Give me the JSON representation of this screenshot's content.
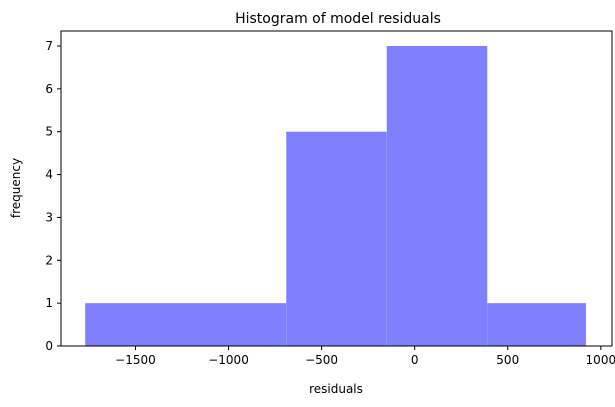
{
  "chart_data": {
    "type": "bar",
    "title": "Histogram of model residuals",
    "xlabel": "residuals",
    "ylabel": "frequency",
    "xlim": [
      -1900,
      1060
    ],
    "ylim": [
      0,
      7.35
    ],
    "bins": [
      {
        "x0": -1770,
        "x1": -690,
        "count": 1
      },
      {
        "x0": -690,
        "x1": -150,
        "count": 5
      },
      {
        "x0": -150,
        "x1": 390,
        "count": 7
      },
      {
        "x0": 390,
        "x1": 920,
        "count": 1
      }
    ],
    "xticks": [
      -1500,
      -1000,
      -500,
      0,
      500,
      1000
    ],
    "xtick_labels": [
      "−1500",
      "−1000",
      "−500",
      "0",
      "500",
      "1000"
    ],
    "yticks": [
      0,
      1,
      2,
      3,
      4,
      5,
      6,
      7
    ],
    "ytick_labels": [
      "0",
      "1",
      "2",
      "3",
      "4",
      "5",
      "6",
      "7"
    ],
    "bar_color": "#8080ff",
    "grid": false,
    "legend": "none"
  }
}
